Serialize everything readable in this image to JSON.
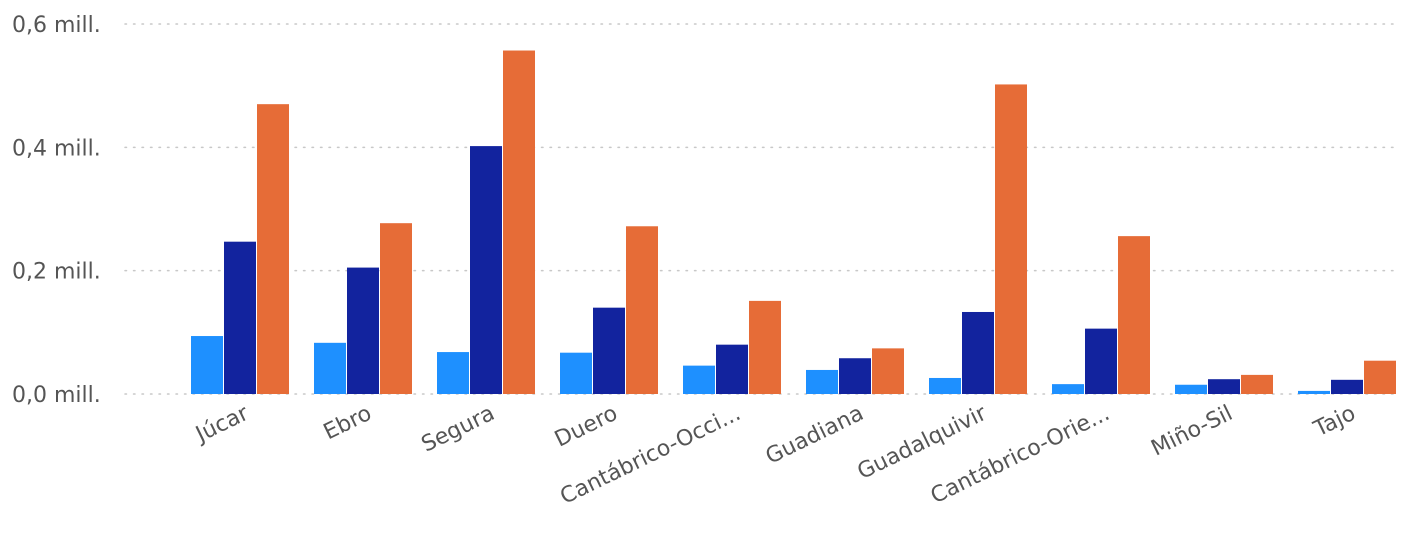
{
  "chart_data": {
    "type": "bar",
    "title": "",
    "xlabel": "",
    "ylabel": "",
    "categories": [
      "Júcar",
      "Ebro",
      "Segura",
      "Duero",
      "Cantábrico-Occi...",
      "Guadiana",
      "Guadalquivir",
      "Cantábrico-Orie...",
      "Miño-Sil",
      "Tajo"
    ],
    "series": [
      {
        "color": "#1e90ff",
        "values": [
          0.094,
          0.083,
          0.068,
          0.067,
          0.046,
          0.039,
          0.026,
          0.016,
          0.015,
          0.005
        ]
      },
      {
        "color": "#12239e",
        "values": [
          0.247,
          0.205,
          0.402,
          0.14,
          0.08,
          0.058,
          0.133,
          0.106,
          0.024,
          0.023
        ]
      },
      {
        "color": "#e66c37",
        "values": [
          0.47,
          0.277,
          0.557,
          0.272,
          0.151,
          0.074,
          0.502,
          0.256,
          0.031,
          0.054
        ]
      }
    ],
    "ylim": [
      0,
      0.6
    ],
    "y_ticks": [
      {
        "value": 0.0,
        "label": "0,0 mill."
      },
      {
        "value": 0.2,
        "label": "0,2 mill."
      },
      {
        "value": 0.4,
        "label": "0,4 mill."
      },
      {
        "value": 0.6,
        "label": "0,6 mill."
      }
    ],
    "grid": true,
    "legend": "none"
  }
}
